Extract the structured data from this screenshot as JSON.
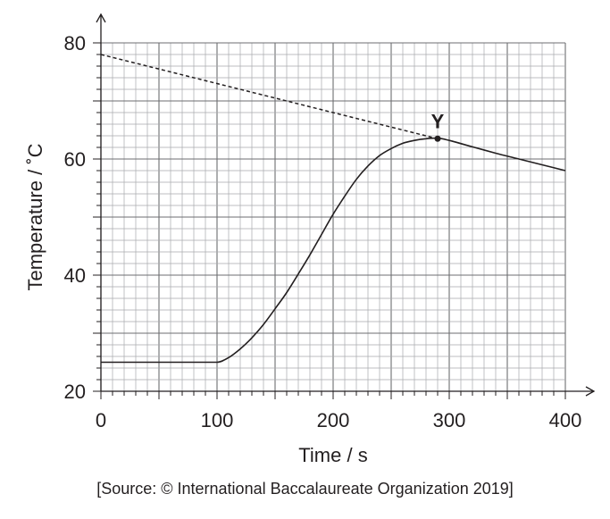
{
  "chart_data": {
    "type": "line",
    "xlabel": "Time / s",
    "ylabel": "Temperature / ˚C",
    "xlim": [
      0,
      400
    ],
    "ylim": [
      20,
      80
    ],
    "x_ticks": [
      0,
      100,
      200,
      300,
      400
    ],
    "y_ticks": [
      20,
      40,
      60,
      80
    ],
    "x_tick_labels": [
      "0",
      "100",
      "200",
      "300",
      "400"
    ],
    "y_tick_labels": [
      "20",
      "40",
      "60",
      "80"
    ],
    "grid": true,
    "series": [
      {
        "style": "solid",
        "x": [
          0,
          100,
          110,
          120,
          130,
          140,
          150,
          160,
          170,
          180,
          190,
          200,
          210,
          220,
          230,
          240,
          250,
          260,
          270,
          280,
          290,
          300,
          320,
          340,
          360,
          380,
          400
        ],
        "y": [
          25,
          25,
          25.8,
          27.3,
          29.2,
          31.5,
          34.2,
          37.0,
          40.2,
          43.5,
          47.0,
          50.5,
          53.6,
          56.5,
          58.8,
          60.6,
          61.8,
          62.7,
          63.2,
          63.5,
          63.6,
          63.2,
          62.1,
          61.0,
          60.0,
          59.0,
          58.0
        ]
      },
      {
        "style": "dashed",
        "x": [
          0,
          290
        ],
        "y": [
          78,
          63.5
        ]
      }
    ],
    "annotations": [
      {
        "text": "Y",
        "x": 290,
        "y": 63.5
      }
    ]
  },
  "source": "[Source: © International Baccalaureate Organization 2019]"
}
